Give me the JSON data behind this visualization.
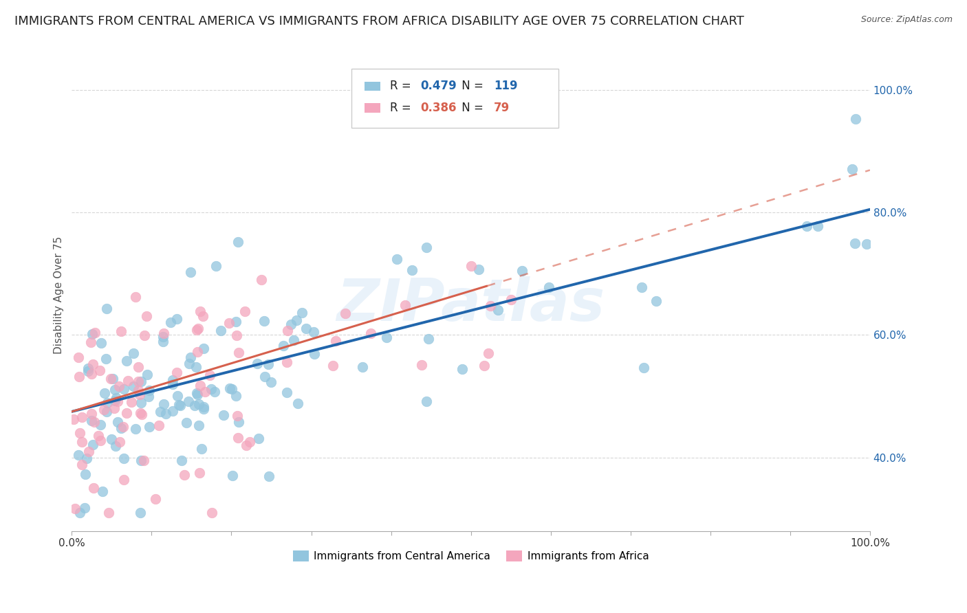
{
  "title": "IMMIGRANTS FROM CENTRAL AMERICA VS IMMIGRANTS FROM AFRICA DISABILITY AGE OVER 75 CORRELATION CHART",
  "source": "Source: ZipAtlas.com",
  "xlabel": "",
  "ylabel": "Disability Age Over 75",
  "legend_label1": "Immigrants from Central America",
  "legend_label2": "Immigrants from Africa",
  "R1": 0.479,
  "N1": 119,
  "R2": 0.386,
  "N2": 79,
  "color1": "#92c5de",
  "color2": "#f4a6bd",
  "line_color1": "#2166ac",
  "line_color2": "#d6604d",
  "xlim": [
    0,
    1.0
  ],
  "ylim": [
    0.28,
    1.05
  ],
  "xticks": [
    0.0,
    0.1,
    0.2,
    0.3,
    0.4,
    0.5,
    0.6,
    0.7,
    0.8,
    0.9,
    1.0
  ],
  "yticks": [
    0.4,
    0.6,
    0.8,
    1.0
  ],
  "xticklabels_show": [
    "0.0%",
    "100.0%"
  ],
  "yticklabels": [
    "40.0%",
    "60.0%",
    "80.0%",
    "100.0%"
  ],
  "watermark": "ZIPatlas",
  "title_fontsize": 13,
  "axis_label_fontsize": 11,
  "tick_fontsize": 11,
  "background_color": "#ffffff",
  "seed1": 42,
  "seed2": 123,
  "n1": 119,
  "n2": 79,
  "blue_line_x0": 0.0,
  "blue_line_y0": 0.475,
  "blue_line_x1": 1.0,
  "blue_line_y1": 0.805,
  "pink_line_x0": 0.0,
  "pink_line_y0": 0.475,
  "pink_line_x1": 0.52,
  "pink_line_y1": 0.68
}
